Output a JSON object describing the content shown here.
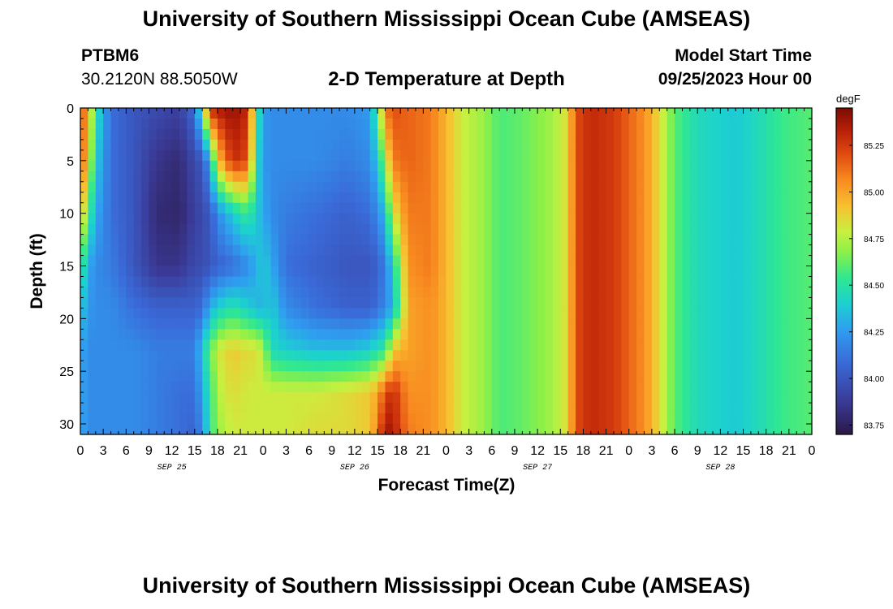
{
  "header": {
    "title": "University of Southern Mississippi Ocean Cube (AMSEAS)",
    "footer_title": "University of Southern Mississippi Ocean Cube (AMSEAS)",
    "station_id": "PTBM6",
    "station_coords": "30.2120N  88.5050W",
    "start_time_label": "Model Start Time",
    "start_time_value": "09/25/2023 Hour 00"
  },
  "chart_data": {
    "type": "heatmap",
    "title": "2-D Temperature at Depth",
    "xlabel": "Forecast Time(Z)",
    "ylabel": "Depth (ft)",
    "x_range_hours": [
      0,
      96
    ],
    "ylim": [
      0,
      31
    ],
    "x_tick_labels": [
      "0",
      "3",
      "6",
      "9",
      "12",
      "15",
      "18",
      "21",
      "0",
      "3",
      "6",
      "9",
      "12",
      "15",
      "18",
      "21",
      "0",
      "3",
      "6",
      "9",
      "12",
      "15",
      "18",
      "21",
      "0",
      "3",
      "6",
      "9",
      "12",
      "15",
      "18",
      "21",
      "0"
    ],
    "date_labels": [
      {
        "label": "SEP 25",
        "hour": 12
      },
      {
        "label": "SEP 26",
        "hour": 36
      },
      {
        "label": "SEP 27",
        "hour": 60
      },
      {
        "label": "SEP 28",
        "hour": 84
      }
    ],
    "y_ticks": [
      0,
      5,
      10,
      15,
      20,
      25,
      30
    ],
    "colorbar": {
      "units": "degF",
      "min": 83.7,
      "max": 85.45,
      "ticks": [
        "83.75",
        "84.00",
        "84.25",
        "84.50",
        "84.75",
        "85.00",
        "85.25"
      ],
      "stops": [
        [
          0.0,
          "#2a1846"
        ],
        [
          0.1,
          "#3a3a96"
        ],
        [
          0.22,
          "#3a6ad8"
        ],
        [
          0.32,
          "#2f9ef0"
        ],
        [
          0.4,
          "#1cd0d0"
        ],
        [
          0.48,
          "#30e890"
        ],
        [
          0.56,
          "#8cf048"
        ],
        [
          0.62,
          "#c8f040"
        ],
        [
          0.7,
          "#f8c030"
        ],
        [
          0.78,
          "#f88a20"
        ],
        [
          0.86,
          "#e04a10"
        ],
        [
          0.93,
          "#b82008"
        ],
        [
          1.0,
          "#7a0c04"
        ]
      ]
    },
    "column_profiles": [
      {
        "hour": 0,
        "values": [
          85.2,
          85.2,
          85.0,
          84.6,
          84.4,
          84.3,
          84.3,
          84.3
        ]
      },
      {
        "hour": 1,
        "values": [
          85.0,
          84.9,
          84.6,
          84.3,
          84.25,
          84.2,
          84.2,
          84.2
        ]
      },
      {
        "hour": 2,
        "values": [
          84.5,
          84.4,
          84.3,
          84.2,
          84.2,
          84.2,
          84.2,
          84.2
        ]
      },
      {
        "hour": 4,
        "values": [
          84.1,
          84.1,
          84.1,
          84.15,
          84.2,
          84.2,
          84.2,
          84.2
        ]
      },
      {
        "hour": 7,
        "values": [
          84.0,
          84.0,
          84.0,
          84.0,
          84.1,
          84.2,
          84.2,
          84.2
        ]
      },
      {
        "hour": 10,
        "values": [
          83.95,
          83.85,
          83.8,
          83.85,
          84.05,
          84.15,
          84.15,
          84.15
        ]
      },
      {
        "hour": 13,
        "values": [
          83.9,
          83.8,
          83.78,
          83.85,
          84.05,
          84.15,
          84.1,
          84.1
        ]
      },
      {
        "hour": 15,
        "values": [
          84.1,
          83.95,
          83.9,
          83.95,
          84.05,
          84.15,
          84.1,
          84.05
        ]
      },
      {
        "hour": 16,
        "values": [
          84.6,
          84.0,
          83.95,
          83.95,
          84.1,
          84.4,
          84.3,
          84.2
        ]
      },
      {
        "hour": 17,
        "values": [
          85.3,
          84.3,
          84.0,
          84.0,
          84.3,
          84.6,
          84.5,
          84.5
        ]
      },
      {
        "hour": 18,
        "values": [
          85.35,
          84.9,
          84.2,
          84.05,
          84.4,
          84.8,
          84.75,
          84.7
        ]
      },
      {
        "hour": 20,
        "values": [
          85.4,
          85.3,
          84.4,
          84.1,
          84.5,
          84.9,
          84.85,
          84.8
        ]
      },
      {
        "hour": 22,
        "values": [
          85.3,
          85.2,
          84.55,
          84.2,
          84.4,
          84.85,
          84.8,
          84.8
        ]
      },
      {
        "hour": 23,
        "values": [
          84.6,
          84.5,
          84.4,
          84.3,
          84.35,
          84.85,
          84.8,
          84.8
        ]
      },
      {
        "hour": 24,
        "values": [
          84.25,
          84.25,
          84.3,
          84.4,
          84.3,
          84.75,
          84.8,
          84.8
        ]
      },
      {
        "hour": 25,
        "values": [
          84.2,
          84.2,
          84.2,
          84.3,
          84.4,
          84.45,
          84.8,
          84.8
        ]
      },
      {
        "hour": 27,
        "values": [
          84.2,
          84.2,
          84.15,
          84.1,
          84.2,
          84.4,
          84.8,
          84.8
        ]
      },
      {
        "hour": 31,
        "values": [
          84.2,
          84.2,
          84.1,
          84.05,
          84.1,
          84.35,
          84.8,
          84.85
        ]
      },
      {
        "hour": 35,
        "values": [
          84.2,
          84.15,
          84.05,
          84.0,
          84.05,
          84.35,
          84.85,
          84.85
        ]
      },
      {
        "hour": 38,
        "values": [
          84.25,
          84.2,
          84.1,
          84.0,
          84.05,
          84.4,
          84.9,
          84.9
        ]
      },
      {
        "hour": 39,
        "values": [
          84.6,
          84.4,
          84.2,
          84.05,
          84.1,
          84.5,
          85.0,
          85.1
        ]
      },
      {
        "hour": 40,
        "values": [
          85.1,
          84.7,
          84.35,
          84.15,
          84.2,
          84.5,
          85.2,
          85.4
        ]
      },
      {
        "hour": 41,
        "values": [
          85.2,
          85.1,
          84.8,
          84.4,
          84.3,
          84.9,
          85.3,
          85.35
        ]
      },
      {
        "hour": 43,
        "values": [
          85.15,
          85.15,
          85.1,
          85.05,
          85.0,
          85.0,
          85.05,
          85.1
        ]
      },
      {
        "hour": 46,
        "values": [
          85.1,
          85.1,
          85.1,
          85.1,
          85.05,
          85.05,
          85.05,
          85.05
        ]
      },
      {
        "hour": 48,
        "values": [
          84.95,
          84.95,
          84.95,
          84.95,
          84.95,
          84.95,
          84.95,
          84.95
        ]
      },
      {
        "hour": 50,
        "values": [
          84.8,
          84.8,
          84.8,
          84.8,
          84.8,
          84.8,
          84.8,
          84.8
        ]
      },
      {
        "hour": 53,
        "values": [
          84.7,
          84.7,
          84.7,
          84.7,
          84.7,
          84.7,
          84.7,
          84.7
        ]
      },
      {
        "hour": 55,
        "values": [
          84.58,
          84.58,
          84.58,
          84.58,
          84.58,
          84.58,
          84.58,
          84.58
        ]
      },
      {
        "hour": 58,
        "values": [
          84.62,
          84.62,
          84.62,
          84.62,
          84.62,
          84.62,
          84.62,
          84.62
        ]
      },
      {
        "hour": 62,
        "values": [
          84.72,
          84.72,
          84.72,
          84.72,
          84.72,
          84.72,
          84.72,
          84.72
        ]
      },
      {
        "hour": 64,
        "values": [
          84.85,
          84.85,
          84.85,
          84.85,
          84.85,
          84.85,
          84.85,
          84.85
        ]
      },
      {
        "hour": 65,
        "values": [
          85.2,
          85.2,
          85.2,
          85.2,
          85.2,
          85.2,
          85.2,
          85.2
        ]
      },
      {
        "hour": 67,
        "values": [
          85.3,
          85.3,
          85.3,
          85.3,
          85.3,
          85.3,
          85.3,
          85.3
        ]
      },
      {
        "hour": 70,
        "values": [
          85.25,
          85.25,
          85.25,
          85.25,
          85.25,
          85.25,
          85.25,
          85.25
        ]
      },
      {
        "hour": 72,
        "values": [
          85.15,
          85.15,
          85.15,
          85.15,
          85.15,
          85.15,
          85.15,
          85.15
        ]
      },
      {
        "hour": 74,
        "values": [
          85.05,
          85.05,
          85.05,
          85.05,
          85.05,
          85.05,
          85.05,
          85.05
        ]
      },
      {
        "hour": 76,
        "values": [
          84.85,
          84.85,
          84.85,
          84.85,
          84.85,
          84.85,
          84.85,
          84.85
        ]
      },
      {
        "hour": 78,
        "values": [
          84.6,
          84.6,
          84.6,
          84.6,
          84.6,
          84.6,
          84.6,
          84.6
        ]
      },
      {
        "hour": 81,
        "values": [
          84.45,
          84.45,
          84.45,
          84.45,
          84.45,
          84.45,
          84.45,
          84.45
        ]
      },
      {
        "hour": 86,
        "values": [
          84.38,
          84.38,
          84.38,
          84.38,
          84.38,
          84.38,
          84.38,
          84.38
        ]
      },
      {
        "hour": 89,
        "values": [
          84.45,
          84.45,
          84.45,
          84.45,
          84.45,
          84.45,
          84.45,
          84.45
        ]
      },
      {
        "hour": 92,
        "values": [
          84.55,
          84.55,
          84.55,
          84.55,
          84.55,
          84.55,
          84.55,
          84.55
        ]
      },
      {
        "hour": 96,
        "values": [
          84.6,
          84.6,
          84.6,
          84.6,
          84.6,
          84.6,
          84.6,
          84.6
        ]
      }
    ],
    "profile_depths_ft": [
      0,
      5,
      10,
      15,
      19,
      23,
      27,
      31
    ]
  }
}
